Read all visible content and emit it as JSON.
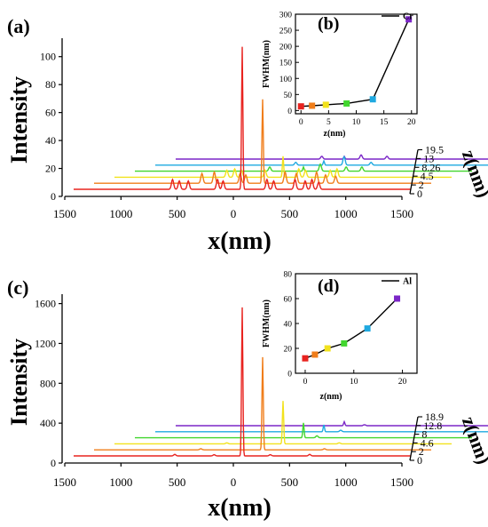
{
  "chart_data": [
    {
      "panel": "(a)",
      "type": "line",
      "subtype": "waterfall-3d",
      "ylabel": "Intensity",
      "xlabel": "x(nm)",
      "zlabel": "z(nm)",
      "x_ticks": [
        "1500",
        "1000",
        "500",
        "0",
        "500",
        "1000",
        "1500"
      ],
      "y_ticks": [
        "0",
        "20",
        "40",
        "60",
        "80",
        "100"
      ],
      "z_ticks": [
        "0",
        "2",
        "4.5",
        "8.26",
        "13",
        "19.5"
      ],
      "ylim": [
        0,
        110
      ],
      "series": [
        {
          "z": "0",
          "color": "#e8231f",
          "main_peak_x": 0,
          "main_peak_intensity": 102,
          "side_peaks": [
            [
              -620,
              7
            ],
            [
              -560,
              6
            ],
            [
              -480,
              6
            ],
            [
              -220,
              7
            ],
            [
              -170,
              6
            ],
            [
              220,
              7
            ],
            [
              280,
              6
            ],
            [
              470,
              7
            ],
            [
              560,
              6
            ],
            [
              620,
              7
            ],
            [
              680,
              5
            ]
          ]
        },
        {
          "z": "2",
          "color": "#f07d1a",
          "main_peak_x": 0,
          "main_peak_intensity": 60,
          "side_peaks": [
            [
              -540,
              7
            ],
            [
              -430,
              8
            ],
            [
              -200,
              7
            ],
            [
              -150,
              6
            ],
            [
              200,
              8
            ],
            [
              300,
              7
            ],
            [
              480,
              8
            ],
            [
              560,
              6
            ],
            [
              650,
              5
            ]
          ]
        },
        {
          "z": "4.5",
          "color": "#f2e21c",
          "main_peak_x": 0,
          "main_peak_intensity": 15,
          "side_peaks": [
            [
              -500,
              5
            ],
            [
              -430,
              6
            ],
            [
              -370,
              5
            ],
            [
              -160,
              5
            ],
            [
              140,
              6
            ],
            [
              200,
              5
            ],
            [
              420,
              5
            ],
            [
              480,
              6
            ]
          ]
        },
        {
          "z": "8.26",
          "color": "#41d62e",
          "main_peak_x": 0,
          "main_peak_intensity": 3,
          "side_peaks": [
            [
              -300,
              3
            ],
            [
              150,
              5
            ],
            [
              380,
              3
            ],
            [
              520,
              3
            ]
          ]
        },
        {
          "z": "13",
          "color": "#1fa9e0",
          "main_peak_x": 0,
          "main_peak_intensity": 3,
          "side_peaks": [
            [
              -250,
              2
            ],
            [
              180,
              6
            ],
            [
              420,
              2
            ]
          ]
        },
        {
          "z": "19.5",
          "color": "#7b26c7",
          "main_peak_x": 0,
          "main_peak_intensity": 2,
          "side_peaks": [
            [
              -200,
              2
            ],
            [
              150,
              3
            ],
            [
              380,
              2
            ]
          ]
        }
      ]
    },
    {
      "panel": "(b)",
      "type": "line",
      "subtype": "inset",
      "xlabel": "z(nm)",
      "ylabel": "FWHM(nm)",
      "legend": "Cr",
      "legend_position": "top-right",
      "x_ticks": [
        "0",
        "5",
        "10",
        "15",
        "20"
      ],
      "y_ticks": [
        "0",
        "50",
        "100",
        "150",
        "200",
        "250",
        "300"
      ],
      "xlim": [
        -1,
        21
      ],
      "ylim": [
        -10,
        300
      ],
      "x": [
        0,
        2,
        4.5,
        8.26,
        13,
        19.5
      ],
      "y": [
        13,
        15,
        18,
        22,
        35,
        284
      ],
      "point_colors": [
        "#e8231f",
        "#f07d1a",
        "#f2e21c",
        "#41d62e",
        "#1fa9e0",
        "#7b26c7"
      ]
    },
    {
      "panel": "(c)",
      "type": "line",
      "subtype": "waterfall-3d",
      "ylabel": "Intensity",
      "xlabel": "x(nm)",
      "zlabel": "z(nm)",
      "x_ticks": [
        "1500",
        "1000",
        "500",
        "0",
        "500",
        "1000",
        "1500"
      ],
      "y_ticks": [
        "0",
        "400",
        "800",
        "1200",
        "1600"
      ],
      "z_ticks": [
        "0",
        "2",
        "4.6",
        "8",
        "12.8",
        "18.9"
      ],
      "ylim": [
        0,
        1650
      ],
      "series": [
        {
          "z": "0",
          "color": "#e8231f",
          "main_peak_x": 0,
          "main_peak_intensity": 1490,
          "side_peaks": [
            [
              -600,
              15
            ],
            [
              -250,
              12
            ],
            [
              250,
              12
            ],
            [
              600,
              15
            ]
          ]
        },
        {
          "z": "2",
          "color": "#f07d1a",
          "main_peak_x": 0,
          "main_peak_intensity": 930,
          "side_peaks": [
            [
              -550,
              12
            ],
            [
              550,
              12
            ]
          ]
        },
        {
          "z": "4.6",
          "color": "#f2e21c",
          "main_peak_x": 0,
          "main_peak_intensity": 430,
          "side_peaks": [
            [
              -500,
              10
            ],
            [
              500,
              10
            ]
          ]
        },
        {
          "z": "8",
          "color": "#41d62e",
          "main_peak_x": 0,
          "main_peak_intensity": 150,
          "side_peaks": [
            [
              120,
              20
            ]
          ]
        },
        {
          "z": "12.8",
          "color": "#1fa9e0",
          "main_peak_x": 0,
          "main_peak_intensity": 70,
          "side_peaks": [
            [
              150,
              15
            ]
          ]
        },
        {
          "z": "18.9",
          "color": "#7b26c7",
          "main_peak_x": 0,
          "main_peak_intensity": 40,
          "side_peaks": [
            [
              180,
              10
            ]
          ]
        }
      ]
    },
    {
      "panel": "(d)",
      "type": "line",
      "subtype": "inset",
      "xlabel": "z(nm)",
      "ylabel": "FWHM(nm)",
      "legend": "Al",
      "legend_position": "top-right",
      "x_ticks": [
        "0",
        "10",
        "20"
      ],
      "y_ticks": [
        "0",
        "20",
        "40",
        "60",
        "80"
      ],
      "xlim": [
        -2,
        23
      ],
      "ylim": [
        0,
        80
      ],
      "x": [
        0,
        2,
        4.6,
        8,
        12.8,
        18.9
      ],
      "y": [
        12,
        15,
        20,
        24,
        36,
        60
      ],
      "point_colors": [
        "#e8231f",
        "#f07d1a",
        "#f2e21c",
        "#41d62e",
        "#1fa9e0",
        "#7b26c7"
      ]
    }
  ]
}
